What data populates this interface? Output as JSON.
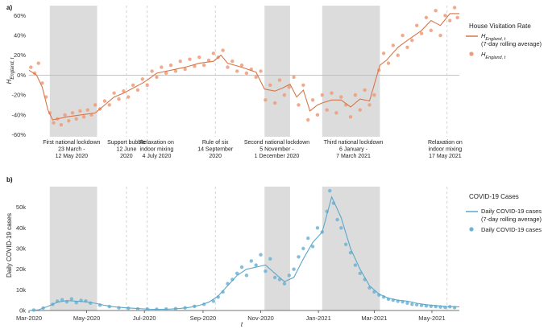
{
  "chart_data": [
    {
      "type": "line",
      "panel_label": "a)",
      "title": "",
      "xlabel": "",
      "ylabel": "H_England,t",
      "ylabel_main": "H",
      "ylabel_sub": "England, t",
      "ylim": [
        -62,
        70
      ],
      "yticks": [
        -60,
        -40,
        -20,
        0,
        20,
        40,
        60
      ],
      "ytick_labels": [
        "-60%",
        "-40%",
        "-20%",
        "0%",
        "20%",
        "40%",
        "60%"
      ],
      "legend": {
        "title": "House Visitation Rate",
        "line_main": "H",
        "line_sub": "England, t",
        "line_suffix": "(7-day rolling average)",
        "points_main": "H",
        "points_sub": "England, t"
      },
      "colors": {
        "line": "#d6764a",
        "points": "#ef9b78",
        "shade": "#dcdcdc",
        "zero": "#bbbbbb"
      },
      "x_range_days": [
        0,
        455
      ],
      "shaded_periods": [
        {
          "start_day": 22,
          "end_day": 72
        },
        {
          "start_day": 249,
          "end_day": 276
        },
        {
          "start_day": 310,
          "end_day": 371
        }
      ],
      "event_lines_days": [
        103,
        125,
        197,
        442
      ],
      "annotations": [
        {
          "day": 45,
          "lines": [
            "First national lockdown",
            "23 March -",
            "12 May 2020"
          ]
        },
        {
          "day": 103,
          "lines": [
            "Support bubble",
            "12 June",
            "2020"
          ]
        },
        {
          "day": 135,
          "lines": [
            "Relaxation on",
            "indoor mixing",
            "4 July 2020"
          ]
        },
        {
          "day": 197,
          "lines": [
            "Rule of six",
            "14 September",
            "2020"
          ]
        },
        {
          "day": 262,
          "lines": [
            "Second national lockdown",
            "5 November -",
            "1 December 2020"
          ]
        },
        {
          "day": 343,
          "lines": [
            "Third national lockdown",
            "6 January -",
            "7 March 2021"
          ]
        },
        {
          "day": 440,
          "lines": [
            "Relaxation on",
            "indoor mixing",
            "17 May 2021"
          ]
        }
      ],
      "series": [
        {
          "name": "H England,t (7-day rolling average)",
          "x_days": [
            0,
            8,
            14,
            20,
            25,
            40,
            55,
            70,
            80,
            90,
            100,
            110,
            120,
            125,
            135,
            150,
            165,
            180,
            195,
            203,
            210,
            225,
            240,
            249,
            260,
            268,
            276,
            283,
            290,
            297,
            305,
            310,
            320,
            330,
            340,
            350,
            360,
            371,
            378,
            390,
            400,
            415,
            425,
            435,
            445,
            455
          ],
          "values": [
            5,
            0,
            -12,
            -35,
            -45,
            -42,
            -40,
            -38,
            -30,
            -22,
            -18,
            -13,
            -8,
            -5,
            2,
            5,
            8,
            12,
            14,
            20,
            12,
            8,
            3,
            -14,
            -16,
            -13,
            -9,
            -22,
            -15,
            -36,
            -30,
            -28,
            -25,
            -25,
            -32,
            -24,
            -26,
            10,
            15,
            28,
            35,
            45,
            55,
            50,
            62,
            62
          ]
        },
        {
          "name": "H England,t (daily)",
          "x_days": [
            2,
            6,
            10,
            14,
            18,
            22,
            26,
            30,
            34,
            38,
            42,
            46,
            50,
            54,
            58,
            62,
            66,
            70,
            75,
            80,
            85,
            90,
            95,
            100,
            105,
            110,
            115,
            120,
            125,
            130,
            135,
            140,
            145,
            150,
            155,
            160,
            165,
            170,
            175,
            180,
            185,
            190,
            195,
            200,
            205,
            210,
            215,
            220,
            225,
            230,
            235,
            240,
            245,
            250,
            255,
            260,
            265,
            270,
            275,
            280,
            285,
            290,
            295,
            300,
            305,
            310,
            315,
            320,
            325,
            330,
            335,
            340,
            345,
            350,
            355,
            360,
            365,
            370,
            375,
            380,
            385,
            390,
            395,
            400,
            405,
            410,
            415,
            420,
            425,
            430,
            435,
            440,
            445,
            450,
            453
          ],
          "values": [
            8,
            2,
            12,
            -8,
            -22,
            -38,
            -48,
            -44,
            -50,
            -40,
            -46,
            -38,
            -44,
            -36,
            -42,
            -35,
            -40,
            -30,
            -34,
            -26,
            -30,
            -18,
            -24,
            -16,
            -22,
            -10,
            -15,
            -4,
            -10,
            4,
            -2,
            8,
            2,
            10,
            4,
            14,
            6,
            16,
            9,
            18,
            10,
            15,
            22,
            18,
            25,
            8,
            14,
            4,
            10,
            2,
            6,
            -2,
            4,
            -25,
            -10,
            -28,
            -5,
            -20,
            -12,
            -2,
            -30,
            -10,
            -45,
            -25,
            -40,
            -20,
            -35,
            -18,
            -38,
            -22,
            -30,
            -42,
            -20,
            -35,
            -15,
            -30,
            -20,
            5,
            22,
            12,
            30,
            20,
            40,
            28,
            35,
            50,
            42,
            58,
            45,
            65,
            40,
            60,
            55,
            68,
            58
          ]
        }
      ]
    },
    {
      "type": "line",
      "panel_label": "b)",
      "title": "",
      "xlabel": "t",
      "ylabel": "Daily COVID-19 cases",
      "ylim": [
        0,
        60000
      ],
      "yticks": [
        0,
        10000,
        20000,
        30000,
        40000,
        50000
      ],
      "ytick_labels": [
        "0k",
        "10k",
        "20k",
        "30k",
        "40k",
        "50k"
      ],
      "x_range_days": [
        0,
        455
      ],
      "xticks_days": [
        0,
        61,
        122,
        184,
        245,
        306,
        365,
        426
      ],
      "xtick_labels": [
        "Mar-2020",
        "May-2020",
        "Jul-2020",
        "Sep-2020",
        "Nov-2020",
        "Jan-2021",
        "Mar-2021",
        "May-2021"
      ],
      "legend": {
        "title": "COVID-19 Cases",
        "line": "Daily COVID-19 cases",
        "line_suffix": "(7-day rolling average)",
        "points": "Daily COVID-19 cases"
      },
      "colors": {
        "line": "#5ba8c8",
        "points": "#6fb3d3",
        "shade": "#dcdcdc"
      },
      "shaded_periods": [
        {
          "start_day": 22,
          "end_day": 72
        },
        {
          "start_day": 249,
          "end_day": 276
        },
        {
          "start_day": 310,
          "end_day": 371
        }
      ],
      "event_lines_days": [
        103,
        125,
        197,
        442
      ],
      "series": [
        {
          "name": "Daily COVID-19 cases (7-day rolling average)",
          "x_days": [
            0,
            10,
            20,
            30,
            40,
            50,
            60,
            70,
            80,
            90,
            100,
            110,
            120,
            130,
            140,
            150,
            160,
            170,
            180,
            190,
            200,
            210,
            220,
            230,
            240,
            250,
            260,
            270,
            280,
            290,
            300,
            310,
            320,
            330,
            340,
            350,
            360,
            370,
            380,
            390,
            400,
            410,
            420,
            430,
            440,
            455
          ],
          "values": [
            0,
            300,
            2000,
            4000,
            4800,
            4500,
            4200,
            3500,
            2500,
            1800,
            1400,
            1100,
            800,
            600,
            600,
            700,
            1000,
            1500,
            2500,
            4000,
            7000,
            12000,
            17000,
            20000,
            21000,
            22000,
            18000,
            14000,
            16000,
            25000,
            33000,
            38000,
            55000,
            45000,
            30000,
            20000,
            12000,
            8000,
            6000,
            5000,
            4500,
            3500,
            2800,
            2400,
            2000,
            1800
          ]
        },
        {
          "name": "Daily COVID-19 cases",
          "x_days": [
            5,
            15,
            25,
            30,
            35,
            40,
            45,
            50,
            55,
            60,
            65,
            75,
            85,
            95,
            105,
            115,
            125,
            135,
            145,
            155,
            165,
            175,
            185,
            195,
            200,
            205,
            210,
            215,
            220,
            225,
            230,
            235,
            240,
            245,
            250,
            255,
            260,
            265,
            270,
            275,
            280,
            285,
            290,
            295,
            300,
            305,
            310,
            315,
            318,
            322,
            326,
            330,
            335,
            340,
            345,
            350,
            355,
            360,
            365,
            370,
            375,
            380,
            385,
            390,
            395,
            400,
            405,
            410,
            415,
            420,
            425,
            430,
            435,
            440,
            445,
            450
          ],
          "values": [
            200,
            1200,
            3000,
            4500,
            5200,
            4200,
            5600,
            3800,
            4900,
            4600,
            3600,
            2600,
            1900,
            1300,
            1100,
            800,
            700,
            600,
            700,
            900,
            1300,
            2000,
            3000,
            4500,
            6500,
            9000,
            13000,
            15000,
            18000,
            21000,
            17000,
            24000,
            22000,
            27000,
            19000,
            25000,
            16000,
            15000,
            13000,
            17000,
            20000,
            26000,
            30000,
            35000,
            31000,
            40000,
            38000,
            48000,
            58000,
            52000,
            44000,
            40000,
            32000,
            28000,
            22000,
            18000,
            15000,
            11000,
            9000,
            7500,
            6500,
            5500,
            5000,
            4500,
            4200,
            3600,
            3000,
            2800,
            2500,
            2200,
            2000,
            1900,
            1700,
            1500,
            1800,
            1400
          ]
        }
      ]
    }
  ]
}
